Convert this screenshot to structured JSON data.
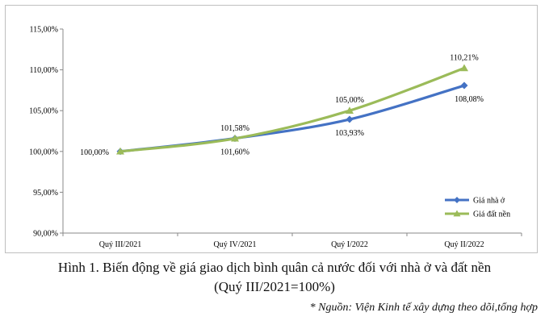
{
  "chart_data": {
    "type": "line",
    "categories": [
      "Quý III/2021",
      "Quý IV/2021",
      "Quý I/2022",
      "Quý II/2022"
    ],
    "series": [
      {
        "name": "Giá nhà ở",
        "values": [
          100.0,
          101.6,
          103.93,
          108.08
        ],
        "labels": [
          "100,00%",
          "101,60%",
          "103,93%",
          "108,08%"
        ],
        "color": "#4472c4",
        "marker": "diamond"
      },
      {
        "name": "Giá đất nền",
        "values": [
          100.0,
          101.58,
          105.0,
          110.21
        ],
        "labels": [
          "",
          "101,58%",
          "105,00%",
          "110,21%"
        ],
        "color": "#9bbb59",
        "marker": "triangle"
      }
    ],
    "ylim": [
      90,
      115
    ],
    "yticks": [
      90,
      95,
      100,
      105,
      110,
      115
    ],
    "ytick_labels": [
      "90,00%",
      "95,00%",
      "100,00%",
      "105,00%",
      "110,00%",
      "115,00%"
    ],
    "grid": false,
    "legend_position": "bottom-right"
  },
  "caption": {
    "line1": "Hình 1. Biến động về giá giao dịch bình quân cả nước đối với nhà ở và đất nền",
    "line2": "(Quý III/2021=100%)"
  },
  "source": "* Nguồn: Viện Kinh tế xây dựng theo dõi,tổng hợp"
}
